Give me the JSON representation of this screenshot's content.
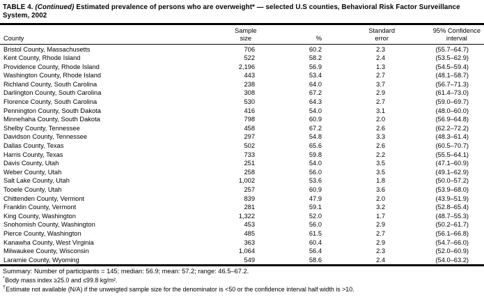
{
  "title": {
    "prefix": "TABLE 4. ",
    "continued": "(Continued)",
    "rest": " Estimated prevalence of persons who are overweight* — selected U.S counties, Behavioral Risk Factor Surveillance System, 2002"
  },
  "table": {
    "header": {
      "county": "County",
      "sample": [
        "Sample",
        "size"
      ],
      "pct": "%",
      "se": [
        "Standard",
        "error"
      ],
      "ci": [
        "95% Confidence",
        "interval"
      ]
    },
    "rows": [
      {
        "county": "Bristol County, Massachusetts",
        "sample": "706",
        "pct": "60.2",
        "se": "2.3",
        "ci": "(55.7–64.7)"
      },
      {
        "county": "Kent County, Rhode Island",
        "sample": "522",
        "pct": "58.2",
        "se": "2.4",
        "ci": "(53.5–62.9)"
      },
      {
        "county": "Providence County, Rhode Island",
        "sample": "2,196",
        "pct": "56.9",
        "se": "1.3",
        "ci": "(54.5–59.4)"
      },
      {
        "county": "Washington County, Rhode Island",
        "sample": "443",
        "pct": "53.4",
        "se": "2.7",
        "ci": "(48.1–58.7)"
      },
      {
        "county": "Richland County, South Carolina",
        "sample": "238",
        "pct": "64.0",
        "se": "3.7",
        "ci": "(56.7–71.3)"
      },
      {
        "county": "Darlington County, South Carolina",
        "sample": "308",
        "pct": "67.2",
        "se": "2.9",
        "ci": "(61.4–73.0)"
      },
      {
        "county": "Florence County, South Carolina",
        "sample": "530",
        "pct": "64.3",
        "se": "2.7",
        "ci": "(59.0–69.7)"
      },
      {
        "county": "Pennington County, South Dakota",
        "sample": "416",
        "pct": "54.0",
        "se": "3.1",
        "ci": "(48.0–60.0)"
      },
      {
        "county": "Minnehaha County, South Dakota",
        "sample": "798",
        "pct": "60.9",
        "se": "2.0",
        "ci": "(56.9–64.8)"
      },
      {
        "county": "Shelby County, Tennessee",
        "sample": "458",
        "pct": "67.2",
        "se": "2.6",
        "ci": "(62.2–72.2)"
      },
      {
        "county": "Davidson County, Tennessee",
        "sample": "297",
        "pct": "54.8",
        "se": "3.3",
        "ci": "(48.3–61.4)"
      },
      {
        "county": "Dallas County, Texas",
        "sample": "502",
        "pct": "65.6",
        "se": "2.6",
        "ci": "(60.5–70.7)"
      },
      {
        "county": "Harris County, Texas",
        "sample": "733",
        "pct": "59.8",
        "se": "2.2",
        "ci": "(55.5–64.1)"
      },
      {
        "county": "Davis County, Utah",
        "sample": "251",
        "pct": "54.0",
        "se": "3.5",
        "ci": "(47.1–60.9)"
      },
      {
        "county": "Weber County, Utah",
        "sample": "258",
        "pct": "56.0",
        "se": "3.5",
        "ci": "(49.1–62.9)"
      },
      {
        "county": "Salt Lake County, Utah",
        "sample": "1,002",
        "pct": "53.6",
        "se": "1.8",
        "ci": "(50.0–57.2)"
      },
      {
        "county": "Tooele County, Utah",
        "sample": "257",
        "pct": "60.9",
        "se": "3.6",
        "ci": "(53.9–68.0)"
      },
      {
        "county": "Chittenden County, Vermont",
        "sample": "839",
        "pct": "47.9",
        "se": "2.0",
        "ci": "(43.9–51.9)"
      },
      {
        "county": "Franklin County, Vermont",
        "sample": "281",
        "pct": "59.1",
        "se": "3.2",
        "ci": "(52.8–65.4)"
      },
      {
        "county": "King County, Washington",
        "sample": "1,322",
        "pct": "52.0",
        "se": "1.7",
        "ci": "(48.7–55.3)"
      },
      {
        "county": "Snohomish County, Washington",
        "sample": "453",
        "pct": "56.0",
        "se": "2.9",
        "ci": "(50.2–61.7)"
      },
      {
        "county": "Pierce County, Washington",
        "sample": "485",
        "pct": "61.5",
        "se": "2.7",
        "ci": "(56.1–66.8)"
      },
      {
        "county": "Kanawha County, West Virginia",
        "sample": "363",
        "pct": "60.4",
        "se": "2.9",
        "ci": "(54.7–66.0)"
      },
      {
        "county": "Milwaukee County, Wisconsin",
        "sample": "1,064",
        "pct": "56.4",
        "se": "2.3",
        "ci": "(52.0–60.9)"
      },
      {
        "county": "Laramie County, Wyoming",
        "sample": "549",
        "pct": "58.6",
        "se": "2.4",
        "ci": "(54.0–63.2)"
      }
    ]
  },
  "summary": "Summary: Number of participants = 145; median: 56.9; mean: 57.2; range: 46.5–67.2.",
  "footnotes": [
    {
      "marker": "*",
      "text": "Body mass index ≥25.0 and ≤99.8 kg/m²."
    },
    {
      "marker": "†",
      "text": "Estimate not available (N/A) if the unweigted sample size for the denominator is <50 or the confidence interval half width is >10."
    }
  ]
}
